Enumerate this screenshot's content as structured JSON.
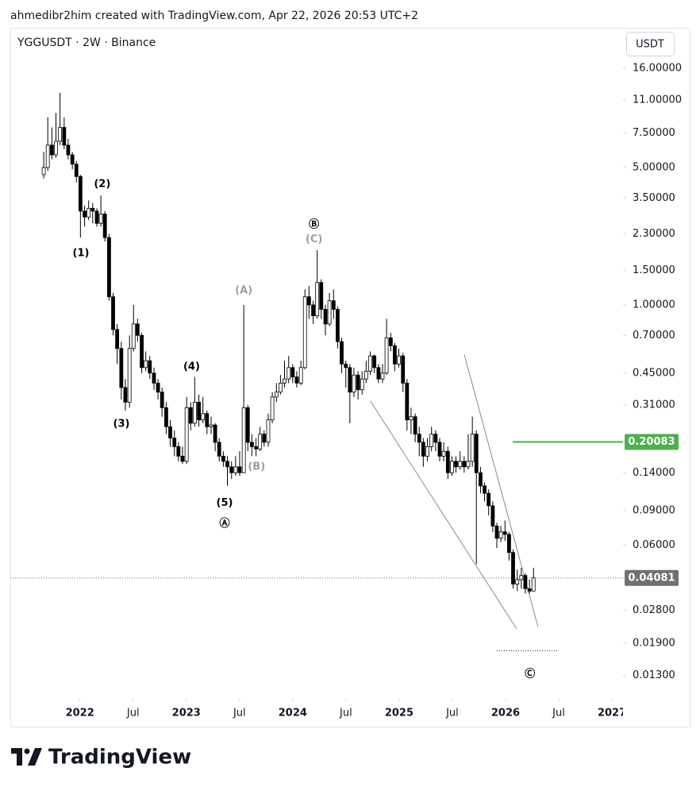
{
  "header": {
    "attribution": "ahmedibr2him created with TradingView.com, Apr 22, 2026 20:53 UTC+2"
  },
  "footer": {
    "logo": "TradingView"
  },
  "chart_data": {
    "type": "candlestick",
    "title": "YGGUSDT · 2W · Binance",
    "currency": "USDT",
    "log_scale": true,
    "up_color": "#ffffff",
    "down_color": "#000000",
    "wick_color": "#000000",
    "x": [
      2021.66,
      2021.698,
      2021.737,
      2021.775,
      2021.813,
      2021.852,
      2021.89,
      2021.929,
      2021.967,
      2022.005,
      2022.044,
      2022.082,
      2022.12,
      2022.159,
      2022.197,
      2022.235,
      2022.274,
      2022.312,
      2022.35,
      2022.389,
      2022.427,
      2022.466,
      2022.504,
      2022.542,
      2022.581,
      2022.619,
      2022.657,
      2022.696,
      2022.734,
      2022.772,
      2022.811,
      2022.849,
      2022.888,
      2022.926,
      2022.964,
      2023.003,
      2023.041,
      2023.079,
      2023.118,
      2023.156,
      2023.194,
      2023.233,
      2023.271,
      2023.309,
      2023.348,
      2023.386,
      2023.425,
      2023.463,
      2023.501,
      2023.54,
      2023.578,
      2023.616,
      2023.655,
      2023.693,
      2023.731,
      2023.77,
      2023.808,
      2023.847,
      2023.885,
      2023.923,
      2023.962,
      2024.0,
      2024.038,
      2024.077,
      2024.115,
      2024.153,
      2024.192,
      2024.23,
      2024.268,
      2024.307,
      2024.345,
      2024.384,
      2024.422,
      2024.46,
      2024.499,
      2024.537,
      2024.575,
      2024.614,
      2024.652,
      2024.69,
      2024.729,
      2024.767,
      2024.806,
      2024.844,
      2024.882,
      2024.921,
      2024.959,
      2024.997,
      2025.036,
      2025.074,
      2025.112,
      2025.151,
      2025.189,
      2025.227,
      2025.266,
      2025.304,
      2025.343,
      2025.381,
      2025.419,
      2025.458,
      2025.496,
      2025.534,
      2025.573,
      2025.611,
      2025.649,
      2025.688,
      2025.726,
      2025.765,
      2025.803,
      2025.841,
      2025.88,
      2025.918,
      2025.956,
      2025.995,
      2026.033,
      2026.071,
      2026.11,
      2026.148,
      2026.186,
      2026.225,
      2026.263
    ],
    "open": [
      4.6,
      5.0,
      6.5,
      5.8,
      6.8,
      8.0,
      6.5,
      5.8,
      5.2,
      4.5,
      3.0,
      2.8,
      3.1,
      3.0,
      2.6,
      2.9,
      2.2,
      1.1,
      0.75,
      0.6,
      0.38,
      0.32,
      0.6,
      0.8,
      0.7,
      0.48,
      0.52,
      0.45,
      0.4,
      0.36,
      0.3,
      0.24,
      0.21,
      0.19,
      0.17,
      0.16,
      0.3,
      0.25,
      0.32,
      0.26,
      0.28,
      0.24,
      0.245,
      0.2,
      0.17,
      0.16,
      0.15,
      0.14,
      0.15,
      0.14,
      0.3,
      0.2,
      0.19,
      0.185,
      0.22,
      0.2,
      0.26,
      0.34,
      0.36,
      0.4,
      0.42,
      0.48,
      0.43,
      0.4,
      0.48,
      1.1,
      1.0,
      0.88,
      1.3,
      0.95,
      0.8,
      1.05,
      0.95,
      0.65,
      0.5,
      0.48,
      0.36,
      0.44,
      0.37,
      0.42,
      0.46,
      0.55,
      0.48,
      0.42,
      0.45,
      0.68,
      0.62,
      0.5,
      0.55,
      0.4,
      0.26,
      0.27,
      0.22,
      0.2,
      0.17,
      0.19,
      0.22,
      0.2,
      0.17,
      0.18,
      0.14,
      0.16,
      0.15,
      0.16,
      0.15,
      0.16,
      0.22,
      0.14,
      0.12,
      0.11,
      0.095,
      0.075,
      0.065,
      0.07,
      0.068,
      0.055,
      0.038,
      0.04,
      0.042,
      0.036,
      0.035
    ],
    "high": [
      6.0,
      9.0,
      8.0,
      9.5,
      12.0,
      9.0,
      7.0,
      6.0,
      5.4,
      4.6,
      3.2,
      3.4,
      3.3,
      3.1,
      3.6,
      3.0,
      2.3,
      1.15,
      0.8,
      0.65,
      0.42,
      0.7,
      1.0,
      0.85,
      0.72,
      0.58,
      0.55,
      0.48,
      0.42,
      0.38,
      0.32,
      0.26,
      0.23,
      0.2,
      0.19,
      0.34,
      0.32,
      0.43,
      0.35,
      0.34,
      0.29,
      0.27,
      0.25,
      0.21,
      0.18,
      0.17,
      0.16,
      0.17,
      0.18,
      1.0,
      0.31,
      0.22,
      0.21,
      0.24,
      0.23,
      0.28,
      0.36,
      0.4,
      0.44,
      0.52,
      0.55,
      0.5,
      0.46,
      0.52,
      1.2,
      1.25,
      1.05,
      1.9,
      1.35,
      1.0,
      1.15,
      1.2,
      0.98,
      0.68,
      0.52,
      0.5,
      0.48,
      0.46,
      0.46,
      0.52,
      0.58,
      0.56,
      0.5,
      0.5,
      0.85,
      0.72,
      0.64,
      0.6,
      0.57,
      0.42,
      0.3,
      0.28,
      0.24,
      0.21,
      0.21,
      0.24,
      0.23,
      0.21,
      0.2,
      0.19,
      0.17,
      0.17,
      0.18,
      0.17,
      0.22,
      0.27,
      0.23,
      0.15,
      0.125,
      0.115,
      0.1,
      0.078,
      0.075,
      0.08,
      0.07,
      0.057,
      0.045,
      0.046,
      0.043,
      0.04,
      0.046
    ],
    "low": [
      4.4,
      4.8,
      5.5,
      5.6,
      6.5,
      6.2,
      5.5,
      4.9,
      4.2,
      2.2,
      2.5,
      2.7,
      2.6,
      2.5,
      2.5,
      2.1,
      1.05,
      0.7,
      0.5,
      0.33,
      0.29,
      0.3,
      0.58,
      0.65,
      0.45,
      0.46,
      0.42,
      0.37,
      0.33,
      0.27,
      0.22,
      0.19,
      0.17,
      0.16,
      0.155,
      0.155,
      0.23,
      0.24,
      0.24,
      0.25,
      0.22,
      0.22,
      0.18,
      0.16,
      0.15,
      0.12,
      0.13,
      0.135,
      0.135,
      0.14,
      0.18,
      0.17,
      0.17,
      0.18,
      0.19,
      0.19,
      0.25,
      0.32,
      0.35,
      0.38,
      0.4,
      0.4,
      0.38,
      0.39,
      0.47,
      0.85,
      0.8,
      0.85,
      0.85,
      0.7,
      0.78,
      0.85,
      0.6,
      0.45,
      0.38,
      0.25,
      0.34,
      0.33,
      0.35,
      0.4,
      0.44,
      0.45,
      0.4,
      0.4,
      0.44,
      0.58,
      0.46,
      0.48,
      0.36,
      0.23,
      0.22,
      0.2,
      0.17,
      0.15,
      0.16,
      0.18,
      0.18,
      0.16,
      0.16,
      0.13,
      0.135,
      0.14,
      0.145,
      0.14,
      0.145,
      0.15,
      0.048,
      0.11,
      0.1,
      0.085,
      0.07,
      0.058,
      0.062,
      0.063,
      0.05,
      0.036,
      0.035,
      0.036,
      0.034,
      0.034,
      0.035
    ],
    "close": [
      5.0,
      6.5,
      5.8,
      6.8,
      8.0,
      6.5,
      5.8,
      5.2,
      4.5,
      3.0,
      2.8,
      3.1,
      3.0,
      2.6,
      2.9,
      2.2,
      1.1,
      0.75,
      0.6,
      0.38,
      0.32,
      0.6,
      0.8,
      0.7,
      0.48,
      0.52,
      0.45,
      0.4,
      0.36,
      0.3,
      0.24,
      0.21,
      0.19,
      0.17,
      0.16,
      0.3,
      0.25,
      0.32,
      0.26,
      0.28,
      0.24,
      0.245,
      0.2,
      0.17,
      0.16,
      0.15,
      0.14,
      0.15,
      0.14,
      0.3,
      0.2,
      0.19,
      0.185,
      0.22,
      0.2,
      0.26,
      0.34,
      0.36,
      0.4,
      0.42,
      0.48,
      0.43,
      0.4,
      0.48,
      1.1,
      1.0,
      0.88,
      1.3,
      0.95,
      0.8,
      1.05,
      0.95,
      0.65,
      0.5,
      0.48,
      0.36,
      0.44,
      0.37,
      0.42,
      0.46,
      0.55,
      0.48,
      0.42,
      0.45,
      0.68,
      0.62,
      0.5,
      0.55,
      0.4,
      0.26,
      0.27,
      0.22,
      0.2,
      0.17,
      0.19,
      0.22,
      0.2,
      0.17,
      0.18,
      0.14,
      0.16,
      0.15,
      0.16,
      0.15,
      0.16,
      0.22,
      0.14,
      0.12,
      0.11,
      0.095,
      0.075,
      0.065,
      0.07,
      0.068,
      0.055,
      0.038,
      0.04,
      0.042,
      0.036,
      0.035,
      0.04081
    ],
    "xlim": [
      2021.346,
      2027.104
    ],
    "ylim": [
      0.0099,
      25.7
    ],
    "xticks": [
      2022,
      {
        "value": 2022.5,
        "label": "Jul"
      },
      2023,
      {
        "value": 2023.5,
        "label": "Jul"
      },
      2024,
      {
        "value": 2024.5,
        "label": "Jul"
      },
      2025,
      {
        "value": 2025.5,
        "label": "Jul"
      },
      2026,
      {
        "value": 2026.5,
        "label": "Jul"
      },
      2027
    ],
    "yticks": [
      {
        "value": 16,
        "label": "16.00000"
      },
      {
        "value": 11,
        "label": "11.00000"
      },
      {
        "value": 7.5,
        "label": "7.50000"
      },
      {
        "value": 5,
        "label": "5.00000"
      },
      {
        "value": 3.5,
        "label": "3.50000"
      },
      {
        "value": 2.3,
        "label": "2.30000"
      },
      {
        "value": 1.5,
        "label": "1.50000"
      },
      {
        "value": 1,
        "label": "1.00000"
      },
      {
        "value": 0.7,
        "label": "0.70000"
      },
      {
        "value": 0.45,
        "label": "0.45000"
      },
      {
        "value": 0.31,
        "label": "0.31000"
      },
      {
        "value": 0.14,
        "label": "0.14000"
      },
      {
        "value": 0.09,
        "label": "0.09000"
      },
      {
        "value": 0.06,
        "label": "0.06000"
      },
      {
        "value": 0.028,
        "label": "0.02800"
      },
      {
        "value": 0.019,
        "label": "0.01900"
      },
      {
        "value": 0.013,
        "label": "0.01300"
      }
    ],
    "last_price": 0.04081,
    "last_price_color": "#707070",
    "level": {
      "value": 0.20083,
      "color": "#4caf50",
      "x_start": 2026.067
    },
    "trendlines": [
      {
        "x": [
          2024.729,
          2026.104
        ],
        "y": [
          0.325,
          0.0225
        ]
      },
      {
        "x": [
          2025.613,
          2026.305
        ],
        "y": [
          0.557,
          0.023
        ]
      }
    ],
    "dotted_segments": [
      {
        "x": [
          2025.918,
          2026.491
        ],
        "y": 0.0174
      }
    ],
    "annotations": [
      {
        "text": "(2)",
        "x": 2022.21,
        "y": 4.11,
        "color": "#000000"
      },
      {
        "text": "(1)",
        "x": 2022.01,
        "y": 1.83,
        "color": "#000000"
      },
      {
        "text": "(3)",
        "x": 2022.39,
        "y": 0.248,
        "color": "#000000"
      },
      {
        "text": "(4)",
        "x": 2023.05,
        "y": 0.484,
        "color": "#000000"
      },
      {
        "text": "(5)",
        "x": 2023.36,
        "y": 0.098,
        "color": "#000000"
      },
      {
        "text": "Ⓐ",
        "x": 2023.36,
        "y": 0.0769,
        "color": "#000000"
      },
      {
        "text": "(A)",
        "x": 2023.54,
        "y": 1.18,
        "color": "#9e9e9e"
      },
      {
        "text": "(B)",
        "x": 2023.66,
        "y": 0.15,
        "color": "#9e9e9e"
      },
      {
        "text": "Ⓑ",
        "x": 2024.2,
        "y": 2.56,
        "color": "#000000"
      },
      {
        "text": "(C)",
        "x": 2024.2,
        "y": 2.15,
        "color": "#9e9e9e"
      },
      {
        "text": "Ⓒ",
        "x": 2026.23,
        "y": 0.0132,
        "color": "#000000"
      }
    ]
  }
}
